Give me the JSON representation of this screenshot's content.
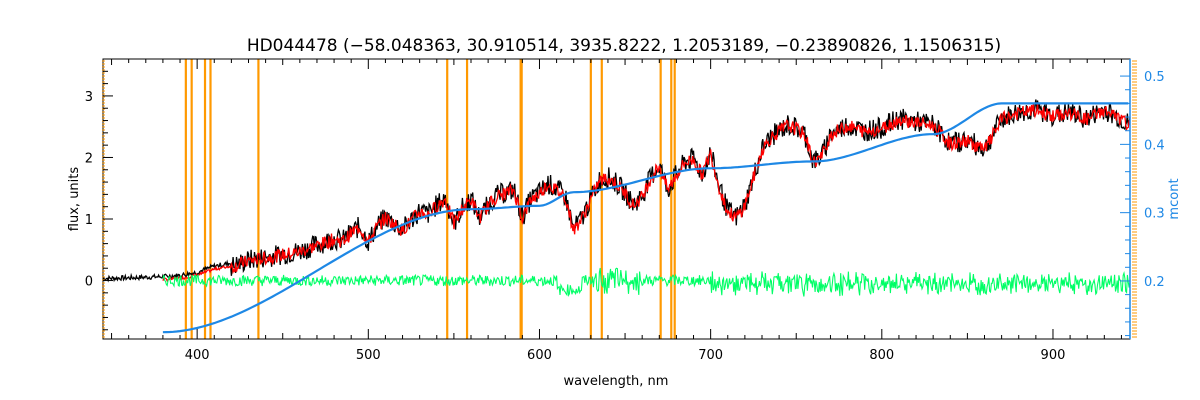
{
  "chart_data": {
    "type": "line",
    "title": "HD044478    (−58.048363, 30.910514, 3935.8222, 1.2053189, −0.23890826, 1.1506315)",
    "xlabel": "wavelength, nm",
    "ylabel": "flux, units",
    "y2label": "mcont",
    "xlim": [
      345,
      945
    ],
    "ylim": [
      -0.95,
      3.6
    ],
    "y2lim": [
      0.115,
      0.525
    ],
    "x_ticks": [
      400,
      500,
      600,
      700,
      800,
      900
    ],
    "y_ticks": [
      0,
      1,
      2,
      3
    ],
    "y2_ticks": [
      0.2,
      0.3,
      0.4,
      0.5
    ],
    "x_tick_labels": [
      "400",
      "500",
      "600",
      "700",
      "800",
      "900"
    ],
    "y_tick_labels": [
      "0",
      "1",
      "2",
      "3"
    ],
    "y2_tick_labels": [
      "0.2",
      "0.3",
      "0.4",
      "0.5"
    ],
    "grid": false,
    "colors": {
      "observed": "#000000",
      "model": "#ff0000",
      "residual": "#00ff66",
      "continuum": "#1e88e5",
      "lines": "#ff9900",
      "right_axis": "#1e88e5"
    },
    "vertical_lines_nm": [
      393.4,
      396.8,
      404.6,
      407.8,
      435.8,
      546.1,
      557.7,
      588.99,
      589.59,
      630.0,
      636.4,
      670.8,
      677.0,
      679.0
    ],
    "series": [
      {
        "x": [
          345,
          360,
          380,
          390,
          400,
          410,
          420,
          430,
          440,
          450,
          460,
          470,
          475,
          480,
          485,
          490,
          495,
          500,
          505,
          510,
          515,
          520,
          525,
          530,
          535,
          540,
          545,
          550,
          555,
          560,
          565,
          570,
          575,
          580,
          585,
          590,
          595,
          600,
          605,
          610,
          615,
          620,
          625,
          630,
          635,
          640,
          645,
          650,
          655,
          660,
          665,
          670,
          675,
          680,
          685,
          690,
          695,
          700,
          705,
          710,
          715,
          720,
          725,
          730,
          735,
          740,
          745,
          750,
          755,
          760,
          765,
          770,
          780,
          790,
          800,
          810,
          820,
          830,
          840,
          850,
          860,
          870,
          880,
          890,
          900,
          910,
          920,
          930,
          945
        ],
        "y": [
          0.05,
          0.06,
          0.08,
          0.1,
          0.15,
          0.25,
          0.3,
          0.4,
          0.45,
          0.5,
          0.55,
          0.65,
          0.7,
          0.75,
          0.72,
          0.85,
          0.95,
          0.7,
          0.95,
          1.1,
          1.0,
          0.9,
          1.05,
          1.2,
          1.15,
          1.3,
          1.4,
          1.0,
          1.25,
          1.4,
          1.1,
          1.3,
          1.45,
          1.5,
          1.55,
          1.1,
          1.4,
          1.5,
          1.65,
          1.55,
          1.45,
          0.9,
          1.1,
          1.4,
          1.7,
          1.75,
          1.65,
          1.5,
          1.3,
          1.45,
          1.75,
          1.95,
          1.55,
          1.8,
          2.0,
          2.05,
          1.8,
          2.15,
          1.6,
          1.2,
          1.1,
          1.3,
          1.75,
          2.2,
          2.4,
          2.5,
          2.6,
          2.55,
          2.45,
          2.0,
          2.1,
          2.45,
          2.6,
          2.5,
          2.55,
          2.7,
          2.65,
          2.6,
          2.3,
          2.35,
          2.2,
          2.7,
          2.8,
          2.85,
          2.75,
          2.8,
          2.7,
          2.85,
          2.6
        ]
      },
      {
        "x": [
          380,
          560,
          600,
          620,
          700,
          760,
          830,
          870,
          945
        ],
        "y": [
          0.125,
          0.305,
          0.31,
          0.33,
          0.365,
          0.375,
          0.415,
          0.46,
          0.46
        ]
      }
    ]
  }
}
